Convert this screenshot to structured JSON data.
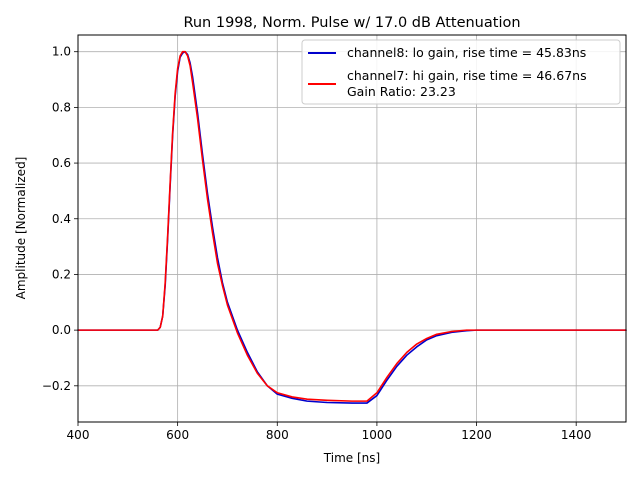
{
  "chart_data": {
    "type": "line",
    "title": "Run 1998, Norm. Pulse w/ 17.0 dB Attenuation",
    "xlabel": "Time [ns]",
    "ylabel": "Amplitude [Normalized]",
    "xlim": [
      400,
      1500
    ],
    "ylim": [
      -0.33,
      1.06
    ],
    "xticks": [
      400,
      600,
      800,
      1000,
      1200,
      1400
    ],
    "yticks": [
      -0.2,
      0.0,
      0.2,
      0.4,
      0.6,
      0.8,
      1.0
    ],
    "xtick_labels": [
      "400",
      "600",
      "800",
      "1000",
      "1200",
      "1400"
    ],
    "ytick_labels": [
      "−0.2",
      "0.0",
      "0.2",
      "0.4",
      "0.6",
      "0.8",
      "1.0"
    ],
    "grid": true,
    "legend": {
      "position": "top-right",
      "extra_text": "Gain Ratio: 23.23"
    },
    "series": [
      {
        "name": "channel8: lo gain, rise time = 45.83ns",
        "color": "#0000cc",
        "x": [
          400,
          560,
          565,
          570,
          575,
          580,
          585,
          590,
          595,
          600,
          605,
          610,
          615,
          620,
          625,
          630,
          640,
          650,
          660,
          670,
          680,
          690,
          700,
          720,
          740,
          760,
          780,
          800,
          830,
          860,
          900,
          950,
          980,
          1000,
          1020,
          1040,
          1060,
          1080,
          1100,
          1120,
          1150,
          1180,
          1200,
          1250,
          1300,
          1400,
          1500
        ],
        "y": [
          0.0,
          0.0,
          0.01,
          0.05,
          0.16,
          0.33,
          0.52,
          0.7,
          0.84,
          0.93,
          0.98,
          0.995,
          1.0,
          0.99,
          0.96,
          0.91,
          0.78,
          0.63,
          0.49,
          0.37,
          0.26,
          0.17,
          0.1,
          0.0,
          -0.08,
          -0.15,
          -0.2,
          -0.23,
          -0.245,
          -0.255,
          -0.26,
          -0.262,
          -0.262,
          -0.235,
          -0.18,
          -0.13,
          -0.09,
          -0.06,
          -0.035,
          -0.02,
          -0.008,
          -0.002,
          0.0,
          0.0,
          0.0,
          0.0,
          0.0
        ]
      },
      {
        "name": "channel7: hi gain, rise time = 46.67ns",
        "color": "#ff0000",
        "x": [
          400,
          560,
          565,
          570,
          575,
          580,
          585,
          590,
          595,
          600,
          605,
          610,
          615,
          620,
          625,
          630,
          640,
          650,
          660,
          670,
          680,
          690,
          700,
          720,
          740,
          760,
          780,
          800,
          830,
          860,
          900,
          950,
          980,
          1000,
          1020,
          1040,
          1060,
          1080,
          1100,
          1120,
          1150,
          1180,
          1200,
          1250,
          1300,
          1400,
          1500
        ],
        "y": [
          0.0,
          0.0,
          0.01,
          0.05,
          0.17,
          0.34,
          0.53,
          0.71,
          0.85,
          0.94,
          0.985,
          1.0,
          1.0,
          0.985,
          0.95,
          0.89,
          0.76,
          0.61,
          0.47,
          0.35,
          0.24,
          0.16,
          0.09,
          -0.01,
          -0.09,
          -0.155,
          -0.2,
          -0.225,
          -0.24,
          -0.248,
          -0.252,
          -0.255,
          -0.255,
          -0.225,
          -0.17,
          -0.12,
          -0.08,
          -0.05,
          -0.03,
          -0.015,
          -0.005,
          0.0,
          0.0,
          0.0,
          0.0,
          0.0,
          0.0
        ]
      }
    ]
  }
}
